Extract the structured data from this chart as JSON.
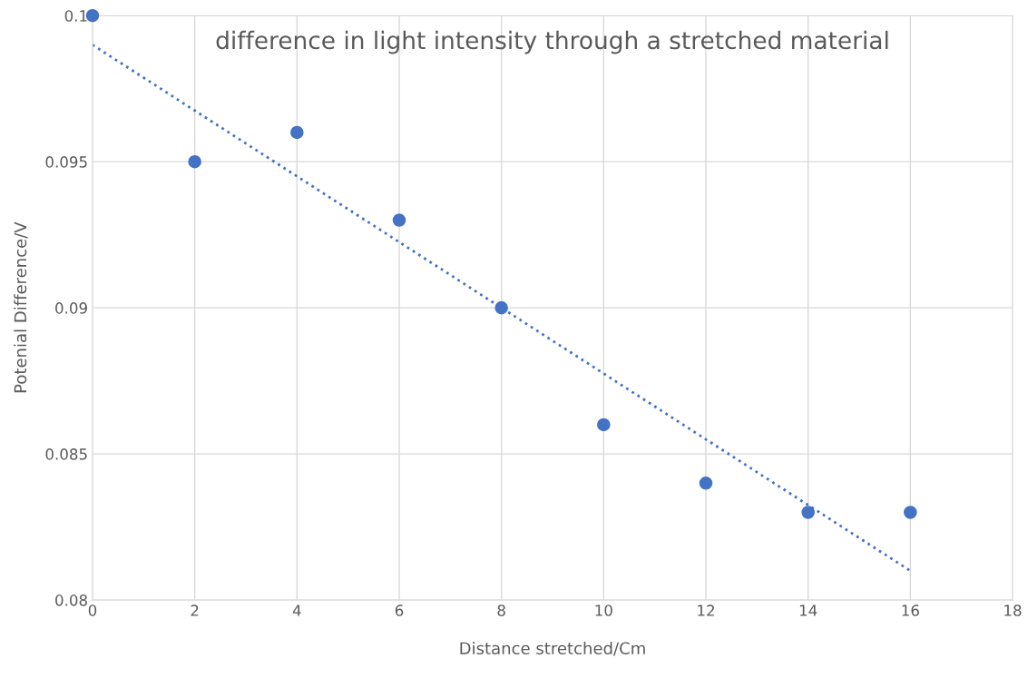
{
  "chart_data": {
    "type": "scatter",
    "title": "difference in light intensity through a stretched material",
    "xlabel": "Distance stretched/Cm",
    "ylabel": "Potenial Difference/V",
    "series": [
      {
        "color": "#4472c4",
        "marker": "circle",
        "x": [
          0,
          2,
          4,
          6,
          8,
          10,
          12,
          14,
          16
        ],
        "values": [
          0.1,
          0.095,
          0.096,
          0.093,
          0.09,
          0.086,
          0.084,
          0.083,
          0.083
        ]
      },
      {
        "type": "line",
        "color": "#4472c4",
        "line_style": "dotted",
        "marker": "none",
        "x": [
          0,
          16
        ],
        "values": [
          0.099,
          0.081
        ]
      }
    ],
    "xlim": [
      0,
      18
    ],
    "xticks": [
      0,
      2,
      4,
      6,
      8,
      10,
      12,
      14,
      16,
      18
    ],
    "ylim": [
      0.08,
      0.1
    ],
    "yticks": [
      0.08,
      0.085,
      0.09,
      0.095,
      0.1
    ],
    "grid": true,
    "legend": false
  }
}
